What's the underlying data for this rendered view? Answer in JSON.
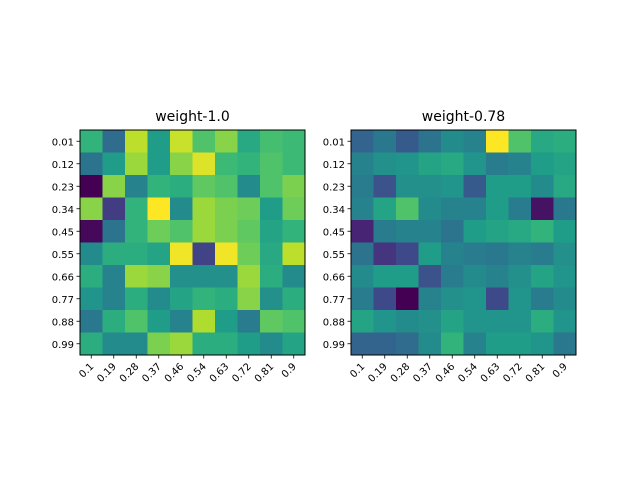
{
  "chart_data": [
    {
      "type": "heatmap",
      "title": "weight-1.0",
      "x_ticks": [
        "0.1",
        "0.19",
        "0.28",
        "0.37",
        "0.46",
        "0.54",
        "0.63",
        "0.72",
        "0.81",
        "0.9"
      ],
      "y_ticks": [
        "0.01",
        "0.12",
        "0.23",
        "0.34",
        "0.45",
        "0.55",
        "0.66",
        "0.77",
        "0.88",
        "0.99"
      ],
      "colormap": "viridis",
      "grid": false,
      "values": [
        [
          0.65,
          0.35,
          0.9,
          0.55,
          0.92,
          0.72,
          0.82,
          0.6,
          0.7,
          0.68
        ],
        [
          0.38,
          0.55,
          0.85,
          0.55,
          0.82,
          0.95,
          0.68,
          0.65,
          0.72,
          0.68
        ],
        [
          0.0,
          0.82,
          0.45,
          0.65,
          0.62,
          0.75,
          0.72,
          0.48,
          0.72,
          0.8
        ],
        [
          0.82,
          0.18,
          0.65,
          1.0,
          0.48,
          0.85,
          0.8,
          0.78,
          0.55,
          0.78
        ],
        [
          0.02,
          0.38,
          0.65,
          0.78,
          0.72,
          0.85,
          0.8,
          0.75,
          0.58,
          0.65
        ],
        [
          0.48,
          0.62,
          0.62,
          0.58,
          0.98,
          0.2,
          0.98,
          0.78,
          0.6,
          0.9
        ],
        [
          0.62,
          0.45,
          0.85,
          0.82,
          0.5,
          0.5,
          0.5,
          0.85,
          0.62,
          0.48
        ],
        [
          0.52,
          0.45,
          0.62,
          0.48,
          0.58,
          0.65,
          0.62,
          0.82,
          0.5,
          0.62
        ],
        [
          0.4,
          0.62,
          0.72,
          0.55,
          0.45,
          0.88,
          0.55,
          0.42,
          0.75,
          0.72
        ],
        [
          0.62,
          0.48,
          0.48,
          0.8,
          0.85,
          0.62,
          0.62,
          0.55,
          0.48,
          0.58
        ]
      ]
    },
    {
      "type": "heatmap",
      "title": "weight-0.78",
      "x_ticks": [
        "0.1",
        "0.19",
        "0.28",
        "0.37",
        "0.46",
        "0.54",
        "0.63",
        "0.72",
        "0.81",
        "0.9"
      ],
      "y_ticks": [
        "0.01",
        "0.12",
        "0.23",
        "0.34",
        "0.45",
        "0.55",
        "0.66",
        "0.77",
        "0.88",
        "0.99"
      ],
      "colormap": "viridis",
      "grid": false,
      "values": [
        [
          0.32,
          0.4,
          0.28,
          0.38,
          0.48,
          0.45,
          1.0,
          0.72,
          0.6,
          0.62
        ],
        [
          0.45,
          0.5,
          0.52,
          0.58,
          0.6,
          0.52,
          0.42,
          0.45,
          0.55,
          0.58
        ],
        [
          0.42,
          0.25,
          0.5,
          0.5,
          0.52,
          0.28,
          0.55,
          0.55,
          0.48,
          0.6
        ],
        [
          0.45,
          0.58,
          0.72,
          0.48,
          0.45,
          0.45,
          0.55,
          0.42,
          0.05,
          0.4
        ],
        [
          0.1,
          0.42,
          0.45,
          0.45,
          0.38,
          0.55,
          0.58,
          0.6,
          0.65,
          0.55
        ],
        [
          0.38,
          0.15,
          0.22,
          0.55,
          0.45,
          0.42,
          0.4,
          0.45,
          0.42,
          0.5
        ],
        [
          0.48,
          0.55,
          0.55,
          0.25,
          0.42,
          0.48,
          0.45,
          0.5,
          0.58,
          0.52
        ],
        [
          0.42,
          0.22,
          0.0,
          0.45,
          0.5,
          0.52,
          0.22,
          0.52,
          0.42,
          0.48
        ],
        [
          0.58,
          0.52,
          0.48,
          0.5,
          0.58,
          0.52,
          0.52,
          0.52,
          0.62,
          0.52
        ],
        [
          0.32,
          0.32,
          0.35,
          0.48,
          0.65,
          0.45,
          0.55,
          0.55,
          0.52,
          0.4
        ]
      ]
    }
  ]
}
